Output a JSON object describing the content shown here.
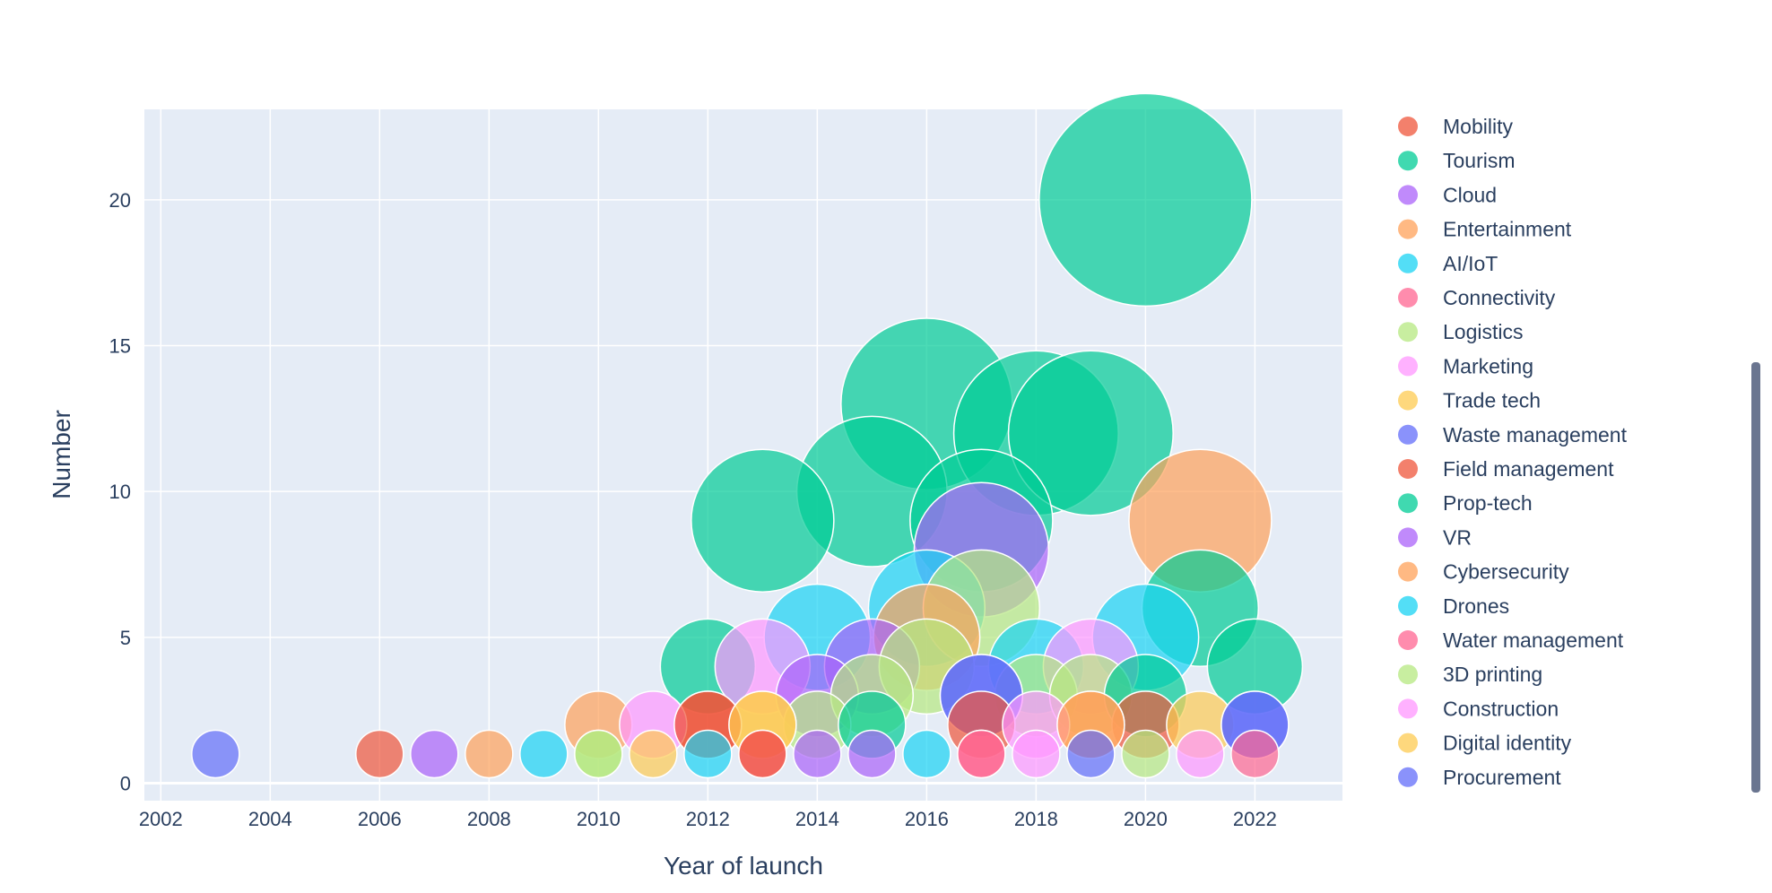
{
  "chart_data": {
    "type": "scatter",
    "subtype": "bubble",
    "xlabel": "Year of launch",
    "ylabel": "Number",
    "xlim": [
      2001.7,
      2023.6
    ],
    "ylim": [
      -0.6,
      23.1
    ],
    "x_ticks": [
      2002,
      2004,
      2006,
      2008,
      2010,
      2012,
      2014,
      2016,
      2018,
      2020,
      2022
    ],
    "y_ticks": [
      0,
      5,
      10,
      15,
      20
    ],
    "grid": true,
    "legend_position": "right",
    "colors": {
      "plot_background": "#E5ECF6",
      "grid": "#FFFFFF",
      "text": "#2a3f5f",
      "scrollbar": "#6a7590"
    },
    "series": [
      {
        "name": "Mobility",
        "color": "#EF553B",
        "points": [
          [
            2006,
            1
          ],
          [
            2012,
            2
          ],
          [
            2017,
            2
          ],
          [
            2020,
            2
          ]
        ]
      },
      {
        "name": "Tourism",
        "color": "#00CC96",
        "points": [
          [
            2012,
            4
          ],
          [
            2013,
            9
          ],
          [
            2015,
            10
          ],
          [
            2016,
            13
          ],
          [
            2017,
            9
          ],
          [
            2018,
            12
          ],
          [
            2019,
            12
          ],
          [
            2020,
            20
          ],
          [
            2021,
            6
          ],
          [
            2022,
            4
          ]
        ]
      },
      {
        "name": "Cloud",
        "color": "#AB63FA",
        "points": [
          [
            2007,
            1
          ],
          [
            2014,
            3
          ],
          [
            2015,
            4
          ],
          [
            2017,
            8
          ]
        ]
      },
      {
        "name": "Entertainment",
        "color": "#FFA15A",
        "points": [
          [
            2008,
            1
          ],
          [
            2010,
            2
          ],
          [
            2016,
            5
          ],
          [
            2019,
            2
          ],
          [
            2021,
            9
          ]
        ]
      },
      {
        "name": "AI/IoT",
        "color": "#19D3F3",
        "points": [
          [
            2009,
            1
          ],
          [
            2012,
            1
          ],
          [
            2014,
            5
          ],
          [
            2016,
            6
          ],
          [
            2018,
            4
          ],
          [
            2020,
            5
          ]
        ]
      },
      {
        "name": "Connectivity",
        "color": "#FF6692",
        "points": [
          [
            2013,
            1
          ],
          [
            2017,
            1
          ],
          [
            2022,
            1
          ]
        ]
      },
      {
        "name": "Logistics",
        "color": "#B6E880",
        "points": [
          [
            2010,
            1
          ],
          [
            2014,
            2
          ],
          [
            2015,
            3
          ],
          [
            2016,
            4
          ],
          [
            2017,
            6
          ],
          [
            2018,
            3
          ],
          [
            2019,
            3
          ],
          [
            2020,
            1
          ]
        ]
      },
      {
        "name": "Marketing",
        "color": "#FF97FF",
        "points": [
          [
            2011,
            2
          ],
          [
            2013,
            4
          ],
          [
            2018,
            2
          ],
          [
            2019,
            4
          ],
          [
            2021,
            1
          ]
        ]
      },
      {
        "name": "Trade tech",
        "color": "#FECB52",
        "points": [
          [
            2011,
            1
          ],
          [
            2013,
            2
          ],
          [
            2021,
            2
          ]
        ]
      },
      {
        "name": "Waste management",
        "color": "#636EFA",
        "points": [
          [
            2003,
            1
          ],
          [
            2017,
            3
          ],
          [
            2019,
            1
          ],
          [
            2022,
            2
          ]
        ]
      },
      {
        "name": "Field management",
        "color": "#EF553B",
        "points": [
          [
            2012,
            2
          ],
          [
            2013,
            1
          ]
        ]
      },
      {
        "name": "Prop-tech",
        "color": "#00CC96",
        "points": [
          [
            2015,
            2
          ],
          [
            2020,
            3
          ]
        ]
      },
      {
        "name": "VR",
        "color": "#AB63FA",
        "points": [
          [
            2014,
            1
          ],
          [
            2015,
            1
          ]
        ]
      },
      {
        "name": "Cybersecurity",
        "color": "#FFA15A",
        "points": [
          [
            2019,
            2
          ]
        ]
      },
      {
        "name": "Drones",
        "color": "#19D3F3",
        "points": [
          [
            2016,
            1
          ]
        ]
      },
      {
        "name": "Water management",
        "color": "#FF6692",
        "points": [
          [
            2017,
            1
          ]
        ]
      },
      {
        "name": "3D printing",
        "color": "#B6E880",
        "points": [
          [
            2010,
            1
          ]
        ]
      },
      {
        "name": "Construction",
        "color": "#FF97FF",
        "points": [
          [
            2018,
            1
          ]
        ]
      },
      {
        "name": "Digital identity",
        "color": "#FECB52",
        "points": [
          [
            2013,
            2
          ]
        ]
      },
      {
        "name": "Procurement",
        "color": "#636EFA",
        "points": [
          [
            2017,
            3
          ],
          [
            2022,
            2
          ]
        ]
      }
    ]
  }
}
